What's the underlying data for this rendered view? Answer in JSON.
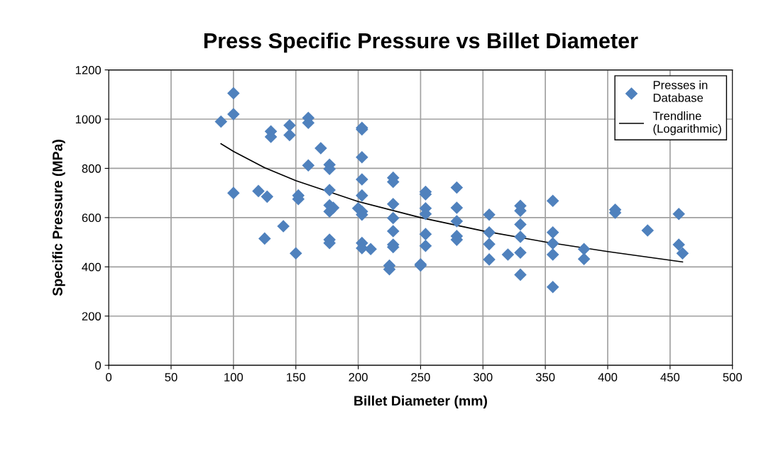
{
  "chart_data": {
    "type": "scatter",
    "title": "Press Specific Pressure vs Billet Diameter",
    "xlabel": "Billet Diameter (mm)",
    "ylabel": "Specific Pressure (MPa)",
    "xlim": [
      0,
      500
    ],
    "xticks": [
      0,
      50,
      100,
      150,
      200,
      250,
      300,
      350,
      400,
      450,
      500
    ],
    "ylim": [
      0,
      1200
    ],
    "yticks": [
      0,
      200,
      400,
      600,
      800,
      1000,
      1200
    ],
    "grid": true,
    "legend": "top right",
    "marker": "diamond",
    "series": [
      {
        "name": "Presses in\nDatabase",
        "color": "#4f81bd",
        "x": [
          90,
          100,
          100,
          100,
          120,
          125,
          127,
          130,
          130,
          140,
          145,
          145,
          150,
          152,
          152,
          160,
          160,
          160,
          170,
          177,
          177,
          177,
          177,
          177,
          177,
          177,
          180,
          200,
          203,
          203,
          203,
          203,
          203,
          203,
          203,
          203,
          203,
          210,
          225,
          225,
          228,
          228,
          228,
          228,
          228,
          228,
          228,
          250,
          250,
          254,
          254,
          254,
          254,
          254,
          254,
          279,
          279,
          279,
          279,
          279,
          305,
          305,
          305,
          305,
          320,
          330,
          330,
          330,
          330,
          330,
          330,
          356,
          356,
          356,
          356,
          356,
          381,
          381,
          406,
          406,
          432,
          457,
          457,
          460
        ],
        "values": [
          990,
          1105,
          1020,
          700,
          708,
          515,
          685,
          950,
          928,
          565,
          975,
          935,
          455,
          690,
          675,
          1005,
          985,
          812,
          882,
          815,
          798,
          712,
          650,
          625,
          510,
          497,
          640,
          638,
          965,
          958,
          845,
          755,
          690,
          625,
          612,
          497,
          476,
          472,
          405,
          390,
          762,
          745,
          655,
          598,
          545,
          490,
          480,
          410,
          405,
          705,
          695,
          638,
          615,
          533,
          485,
          722,
          640,
          585,
          525,
          510,
          612,
          540,
          492,
          430,
          450,
          648,
          628,
          572,
          522,
          458,
          368,
          668,
          540,
          495,
          450,
          318,
          472,
          432,
          632,
          620,
          548,
          615,
          490,
          455
        ]
      },
      {
        "name": "Trendline\n(Logarithmic)",
        "color": "#000000",
        "type": "line",
        "marker": "none",
        "line_style": "solid",
        "x": [
          90,
          100,
          125,
          150,
          200,
          250,
          300,
          350,
          400,
          460
        ],
        "values": [
          900,
          869,
          803,
          750,
          665,
          600,
          546,
          501,
          462,
          420
        ]
      }
    ]
  }
}
